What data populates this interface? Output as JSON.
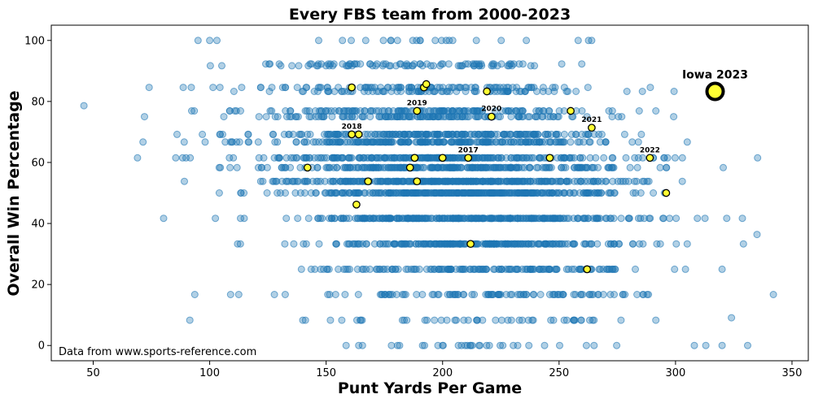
{
  "chart_data": {
    "type": "scatter",
    "title": "Every FBS team from 2000-2023",
    "xlabel": "Punt Yards Per Game",
    "ylabel": "Overall Win Percentage",
    "xlim": [
      32,
      357
    ],
    "ylim": [
      -5,
      105
    ],
    "xticks": [
      50,
      100,
      150,
      200,
      250,
      300,
      350
    ],
    "yticks": [
      0,
      20,
      40,
      60,
      80,
      100
    ],
    "grid": false,
    "source_note": "Data from www.sports-reference.com",
    "colors": {
      "all_teams": "#1f77b4",
      "iowa_fill": "#ffff33",
      "iowa_edge": "#000000"
    },
    "all_teams_generation": {
      "n": 3000,
      "x_mean": 205,
      "x_sd": 38,
      "x_min": 45,
      "x_max": 345,
      "win_levels": [
        0,
        8.3,
        16.7,
        25,
        33.3,
        41.7,
        50,
        53.8,
        58.3,
        61.5,
        66.7,
        69.2,
        75,
        76.9,
        83.3,
        84.6,
        91.7,
        92.3,
        100
      ]
    },
    "all_teams_sample": [
      {
        "x": 46,
        "y": 78.6
      },
      {
        "x": 69,
        "y": 61.5
      },
      {
        "x": 72,
        "y": 75
      },
      {
        "x": 74,
        "y": 84.6
      },
      {
        "x": 86,
        "y": 69.2
      },
      {
        "x": 95,
        "y": 100
      },
      {
        "x": 100,
        "y": 100
      },
      {
        "x": 109,
        "y": 16.7
      },
      {
        "x": 112,
        "y": 33.3
      },
      {
        "x": 140,
        "y": 8.3
      },
      {
        "x": 164,
        "y": 0
      },
      {
        "x": 200,
        "y": 0
      },
      {
        "x": 320,
        "y": 25
      },
      {
        "x": 322,
        "y": 41.7
      },
      {
        "x": 335,
        "y": 36.4
      },
      {
        "x": 342,
        "y": 16.7
      },
      {
        "x": 324,
        "y": 9.1
      },
      {
        "x": 313,
        "y": 0
      },
      {
        "x": 320,
        "y": 0
      }
    ],
    "series": [
      {
        "name": "Iowa",
        "points": [
          {
            "x": 142,
            "y": 58.3
          },
          {
            "x": 161,
            "y": 84.6
          },
          {
            "x": 163,
            "y": 46.2
          },
          {
            "x": 161,
            "y": 69.2,
            "label": "2018"
          },
          {
            "x": 164,
            "y": 69.2
          },
          {
            "x": 168,
            "y": 53.8
          },
          {
            "x": 186,
            "y": 58.3
          },
          {
            "x": 188,
            "y": 61.5
          },
          {
            "x": 189,
            "y": 53.8
          },
          {
            "x": 189,
            "y": 76.9,
            "label": "2019"
          },
          {
            "x": 192,
            "y": 84.6
          },
          {
            "x": 193,
            "y": 85.7
          },
          {
            "x": 200,
            "y": 61.5
          },
          {
            "x": 211,
            "y": 61.5,
            "label": "2017"
          },
          {
            "x": 212,
            "y": 33.3
          },
          {
            "x": 219,
            "y": 83.3
          },
          {
            "x": 221,
            "y": 75.0,
            "label": "2020"
          },
          {
            "x": 246,
            "y": 61.5
          },
          {
            "x": 255,
            "y": 76.9
          },
          {
            "x": 262,
            "y": 25.0
          },
          {
            "x": 264,
            "y": 71.4,
            "label": "2021"
          },
          {
            "x": 289,
            "y": 61.5,
            "label": "2022"
          },
          {
            "x": 296,
            "y": 50.0
          },
          {
            "x": 317,
            "y": 83.3,
            "label": "Iowa 2023",
            "highlight": true
          }
        ]
      }
    ]
  }
}
